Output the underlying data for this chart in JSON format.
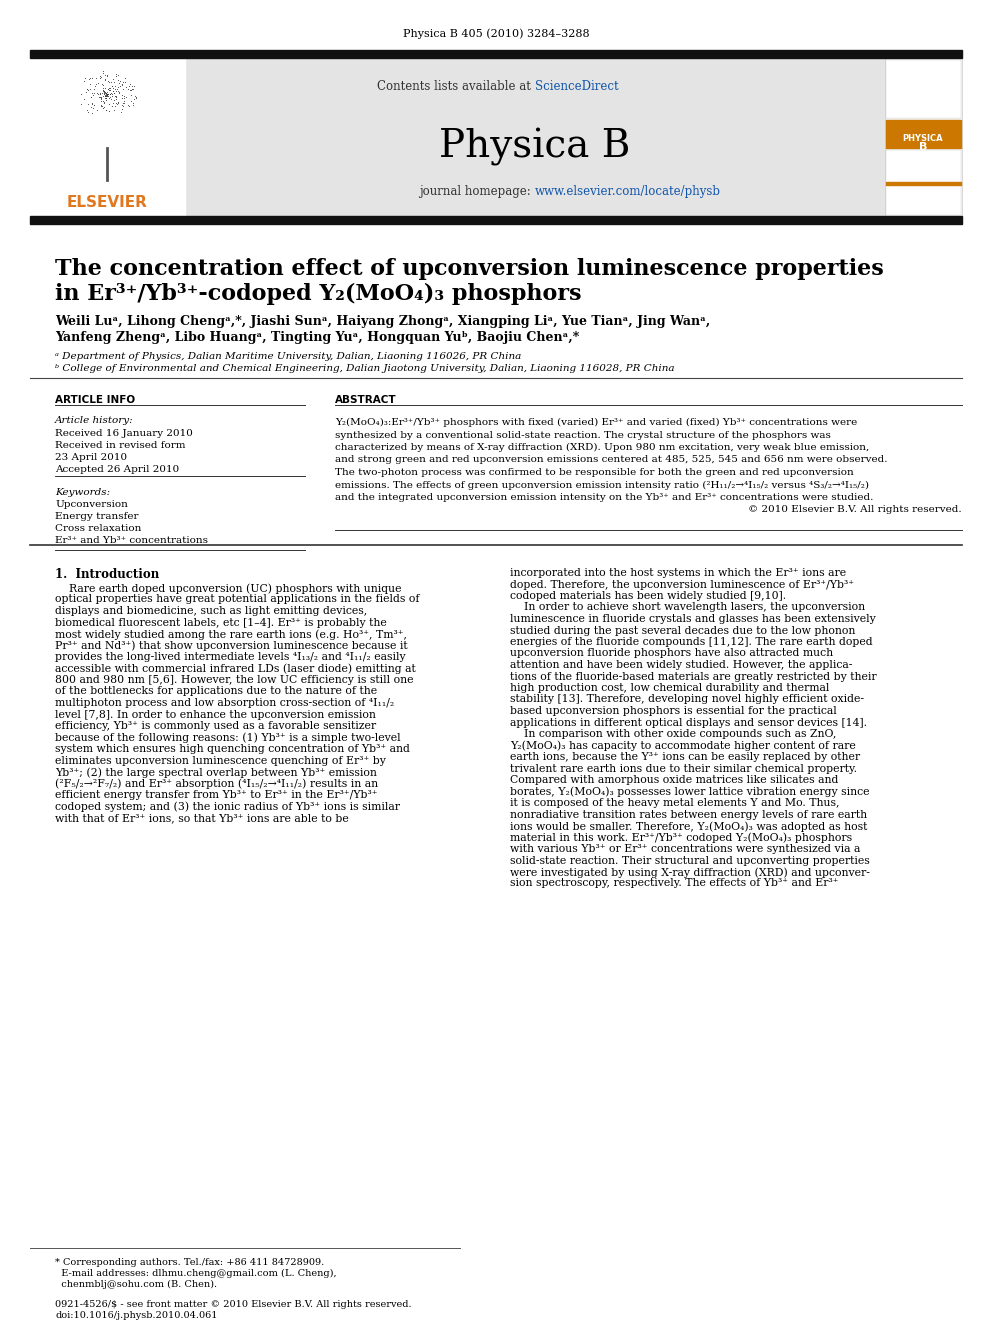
{
  "journal_ref": "Physica B 405 (2010) 3284–3288",
  "contents_text": "Contents lists available at ",
  "sciencedirect_text": "ScienceDirect",
  "journal_name": "Physica B",
  "journal_homepage_label": "journal homepage: ",
  "journal_url": "www.elsevier.com/locate/physb",
  "title_line1": "The concentration effect of upconversion luminescence properties",
  "title_line2": "in Er³⁺/Yb³⁺-codoped Y₂(MoO₄)₃ phosphors",
  "author_line1": "Weili Luᵃ, Lihong Chengᵃ,*, Jiashi Sunᵃ, Haiyang Zhongᵃ, Xiangping Liᵃ, Yue Tianᵃ, Jing Wanᵃ,",
  "author_line2": "Yanfeng Zhengᵃ, Libo Huangᵃ, Tingting Yuᵃ, Hongquan Yuᵇ, Baojiu Chenᵃ,*",
  "affil_a": "ᵃ Department of Physics, Dalian Maritime University, Dalian, Liaoning 116026, PR China",
  "affil_b": "ᵇ College of Environmental and Chemical Engineering, Dalian Jiaotong University, Dalian, Liaoning 116028, PR China",
  "article_info_header": "ARTICLE INFO",
  "abstract_header": "ABSTRACT",
  "article_history_label": "Article history:",
  "received1": "Received 16 January 2010",
  "received2": "Received in revised form",
  "date_april23": "23 April 2010",
  "accepted": "Accepted 26 April 2010",
  "keywords_label": "Keywords:",
  "keyword1": "Upconversion",
  "keyword2": "Energy transfer",
  "keyword3": "Cross relaxation",
  "keyword4": "Er³⁺ and Yb³⁺ concentrations",
  "abstract_lines": [
    "Y₂(MoO₄)₃:Er³⁺/Yb³⁺ phosphors with fixed (varied) Er³⁺ and varied (fixed) Yb³⁺ concentrations were",
    "synthesized by a conventional solid-state reaction. The crystal structure of the phosphors was",
    "characterized by means of X-ray diffraction (XRD). Upon 980 nm excitation, very weak blue emission,",
    "and strong green and red upconversion emissions centered at 485, 525, 545 and 656 nm were observed.",
    "The two-photon process was confirmed to be responsible for both the green and red upconversion",
    "emissions. The effects of green upconversion emission intensity ratio (²H₁₁/₂→⁴I₁₅/₂ versus ⁴S₃/₂→⁴I₁₅/₂)",
    "and the integrated upconversion emission intensity on the Yb³⁺ and Er³⁺ concentrations were studied.",
    "© 2010 Elsevier B.V. All rights reserved."
  ],
  "section1_title": "1.  Introduction",
  "intro_left_lines": [
    "    Rare earth doped upconversion (UC) phosphors with unique",
    "optical properties have great potential applications in the fields of",
    "displays and biomedicine, such as light emitting devices,",
    "biomedical fluorescent labels, etc [1–4]. Er³⁺ is probably the",
    "most widely studied among the rare earth ions (e.g. Ho³⁺, Tm³⁺,",
    "Pr³⁺ and Nd³⁺) that show upconversion luminescence because it",
    "provides the long-lived intermediate levels ⁴I₁₃/₂ and ⁴I₁₁/₂ easily",
    "accessible with commercial infrared LDs (laser diode) emitting at",
    "800 and 980 nm [5,6]. However, the low UC efficiency is still one",
    "of the bottlenecks for applications due to the nature of the",
    "multiphoton process and low absorption cross-section of ⁴I₁₁/₂",
    "level [7,8]. In order to enhance the upconversion emission",
    "efficiency, Yb³⁺ is commonly used as a favorable sensitizer",
    "because of the following reasons: (1) Yb³⁺ is a simple two-level",
    "system which ensures high quenching concentration of Yb³⁺ and",
    "eliminates upconversion luminescence quenching of Er³⁺ by",
    "Yb³⁺; (2) the large spectral overlap between Yb³⁺ emission",
    "(²F₅/₂→²F₇/₂) and Er³⁺ absorption (⁴I₁₅/₂→⁴I₁₁/₂) results in an",
    "efficient energy transfer from Yb³⁺ to Er³⁺ in the Er³⁺/Yb³⁺",
    "codoped system; and (3) the ionic radius of Yb³⁺ ions is similar",
    "with that of Er³⁺ ions, so that Yb³⁺ ions are able to be"
  ],
  "intro_right_lines": [
    "incorporated into the host systems in which the Er³⁺ ions are",
    "doped. Therefore, the upconversion luminescence of Er³⁺/Yb³⁺",
    "codoped materials has been widely studied [9,10].",
    "    In order to achieve short wavelength lasers, the upconversion",
    "luminescence in fluoride crystals and glasses has been extensively",
    "studied during the past several decades due to the low phonon",
    "energies of the fluoride compounds [11,12]. The rare earth doped",
    "upconversion fluoride phosphors have also attracted much",
    "attention and have been widely studied. However, the applica-",
    "tions of the fluoride-based materials are greatly restricted by their",
    "high production cost, low chemical durability and thermal",
    "stability [13]. Therefore, developing novel highly efficient oxide-",
    "based upconversion phosphors is essential for the practical",
    "applications in different optical displays and sensor devices [14].",
    "    In comparison with other oxide compounds such as ZnO,",
    "Y₂(MoO₄)₃ has capacity to accommodate higher content of rare",
    "earth ions, because the Y³⁺ ions can be easily replaced by other",
    "trivalent rare earth ions due to their similar chemical property.",
    "Compared with amorphous oxide matrices like silicates and",
    "borates, Y₂(MoO₄)₃ possesses lower lattice vibration energy since",
    "it is composed of the heavy metal elements Y and Mo. Thus,",
    "nonradiative transition rates between energy levels of rare earth",
    "ions would be smaller. Therefore, Y₂(MoO₄)₃ was adopted as host",
    "material in this work. Er³⁺/Yb³⁺ codoped Y₂(MoO₄)₃ phosphors",
    "with various Yb³⁺ or Er³⁺ concentrations were synthesized via a",
    "solid-state reaction. Their structural and upconverting properties",
    "were investigated by using X-ray diffraction (XRD) and upconver-",
    "sion spectroscopy, respectively. The effects of Yb³⁺ and Er³⁺"
  ],
  "footnote_lines": [
    "* Corresponding authors. Tel./fax: +86 411 84728909.",
    "  E-mail addresses: dlhmu.cheng@gmail.com (L. Cheng),",
    "  chenmblj@sohu.com (B. Chen)."
  ],
  "footer_lines": [
    "0921-4526/$ - see front matter © 2010 Elsevier B.V. All rights reserved.",
    "doi:10.1016/j.physb.2010.04.061"
  ],
  "bg_color": "#ffffff",
  "gray_header_bg": "#e4e4e4",
  "black_bar_color": "#111111",
  "orange_color": "#e07820",
  "blue_color": "#1155aa",
  "text_color": "#000000"
}
